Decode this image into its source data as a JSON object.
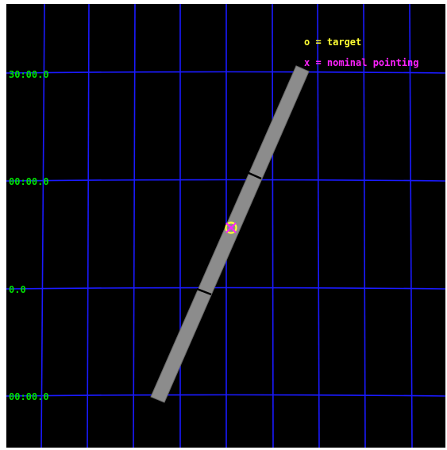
{
  "legend": {
    "target_label": "o = target",
    "nominal_label": "x = nominal pointing"
  },
  "dec_labels": [
    "30:00.0",
    "00:00.0",
    "0.0",
    "00:00.0"
  ],
  "colors": {
    "background": "#000000",
    "grid": "#1a1aff",
    "labels": "#00e000",
    "slit": "#8c8c8c",
    "target": "#ffff33",
    "nominal": "#ff22ff"
  },
  "icons": {
    "target_marker": "circle",
    "nominal_marker": "x-cross"
  }
}
